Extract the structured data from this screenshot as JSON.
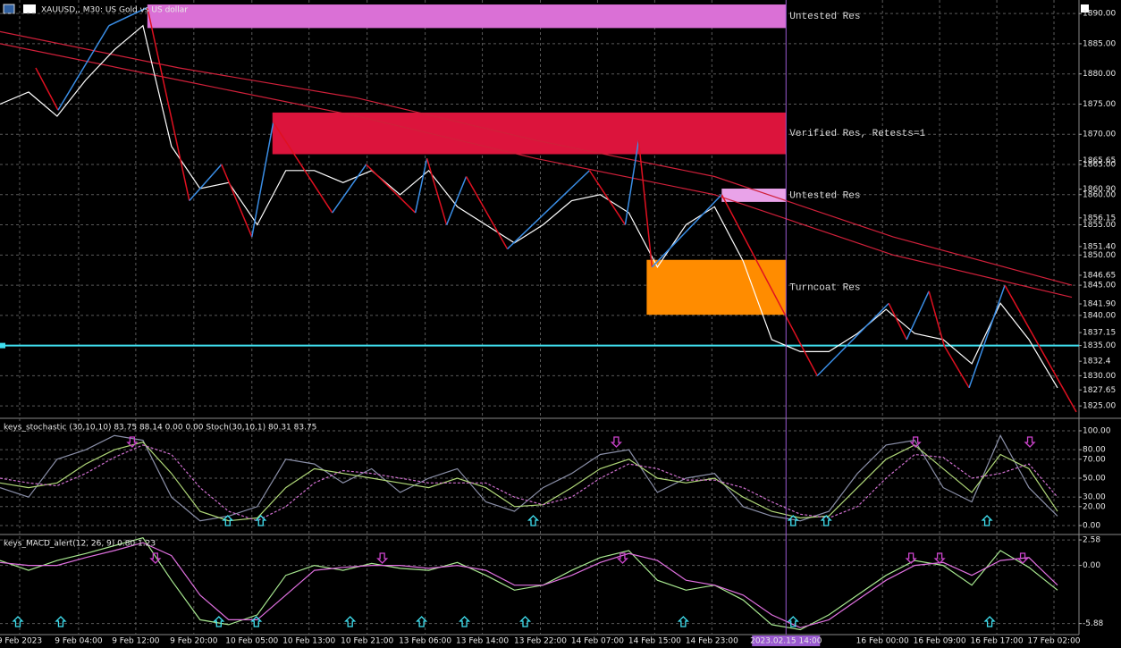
{
  "chart_data": [
    {
      "type": "line",
      "title": "XAUUSD,, M30: US Gold vs US dollar",
      "xlim": [
        0,
        302
      ],
      "ylim": [
        1823.1,
        1891.8
      ],
      "yticks": [
        {
          "value": 1825,
          "label": "1825.00"
        },
        {
          "value": 1830,
          "label": "1830.00"
        },
        {
          "value": 1835,
          "label": "1835.00"
        },
        {
          "value": 1840,
          "label": "1840.00"
        },
        {
          "value": 1845,
          "label": "1845.00"
        },
        {
          "value": 1850,
          "label": "1850.00"
        },
        {
          "value": 1855,
          "label": "1855.00"
        },
        {
          "value": 1860,
          "label": "1860.00"
        },
        {
          "value": 1865,
          "label": "1865.00"
        },
        {
          "value": 1870,
          "label": "1870.00"
        },
        {
          "value": 1875,
          "label": "1875.00"
        },
        {
          "value": 1880,
          "label": "1880.00"
        },
        {
          "value": 1885,
          "label": "1885.00"
        },
        {
          "value": 1890,
          "label": "1890.00"
        }
      ],
      "yticks_minor": [
        1827.65,
        1832.4,
        {
          "value": 1837.15,
          "label": "1837.15"
        },
        {
          "value": 1841.9,
          "label": "1841.90"
        },
        1846.65,
        {
          "value": 1851.4,
          "label": "1851.40"
        },
        1856.15,
        {
          "value": 1860.9,
          "label": "1860.90"
        },
        1865.65
      ],
      "grid": true,
      "zones": [
        {
          "label": "Untested Res",
          "color": "#da70d6",
          "x": [
            41.25,
            220
          ],
          "y": [
            1887.6,
            1891.5
          ]
        },
        {
          "label": "Verified Res, Retests=1",
          "color": "#dc143c",
          "x": [
            76.25,
            220
          ],
          "y": [
            1866.7,
            1873.6
          ]
        },
        {
          "label": "Untested Res",
          "color": "#e9a3e9",
          "x": [
            202,
            220
          ],
          "y": [
            1858.8,
            1861.0
          ]
        },
        {
          "label": "Turncoat Res",
          "color": "#ff8c00",
          "x": [
            181,
            220
          ],
          "y": [
            1840.1,
            1849.2
          ]
        }
      ],
      "hline": {
        "value": 1835,
        "color": "#40e0f0"
      },
      "series": [
        {
          "color": "#d0203a",
          "x": [
            0,
            50,
            100,
            150,
            200,
            250,
            300
          ],
          "values": [
            1887,
            1881,
            1876,
            1869,
            1863,
            1853,
            1845
          ]
        },
        {
          "color": "#d0203a",
          "x": [
            0,
            50,
            100,
            150,
            200,
            250,
            300
          ],
          "values": [
            1885,
            1879,
            1873,
            1866,
            1860,
            1850,
            1843
          ]
        },
        {
          "color": "#ffffff",
          "x": [
            0,
            8,
            16,
            24,
            32,
            40,
            48,
            56,
            64,
            72,
            80,
            88,
            96,
            104,
            112,
            120,
            128,
            136,
            144,
            152,
            160,
            168,
            176,
            184,
            192,
            200,
            208,
            216,
            224,
            232,
            240,
            248,
            256,
            264,
            272,
            280,
            288,
            296
          ],
          "values": [
            1875,
            1877,
            1873,
            1879,
            1884,
            1888,
            1868,
            1861,
            1862,
            1855,
            1864,
            1864,
            1862,
            1864,
            1860,
            1864,
            1858,
            1855,
            1852,
            1855,
            1859,
            1860,
            1857,
            1848,
            1855,
            1858,
            1849,
            1836,
            1834,
            1834,
            1837,
            1841,
            1837,
            1836,
            1832,
            1842,
            1836,
            1828
          ]
        },
        {
          "style": "zigzag",
          "up_color": "#3a8ee6",
          "down_color": "#e01020",
          "x": [
            10,
            16.25,
            30.5,
            41.25,
            53,
            62,
            70.5,
            76.5,
            93,
            102.5,
            116.25,
            119.5,
            125,
            130.5,
            142,
            165,
            175,
            178.75,
            182.5,
            202,
            228.75,
            248.75,
            253.75,
            260,
            264.25,
            271.25,
            281.25,
            301.25
          ],
          "values": [
            1881,
            1874,
            1888,
            1891,
            1859,
            1865,
            1853,
            1872,
            1857,
            1865,
            1857,
            1866,
            1855,
            1863,
            1851,
            1864,
            1855,
            1869,
            1848,
            1860,
            1830,
            1842,
            1836,
            1844,
            1835,
            1828,
            1845,
            1824
          ]
        }
      ]
    },
    {
      "type": "line",
      "title": "keys_stochastic (30,10,10) 83.75 88.14 0.00 0.00 Stoch(30,10,1) 80.31 83.75",
      "xlim": [
        0,
        302
      ],
      "ylim": [
        -8.5,
        111.3
      ],
      "yticks": [
        {
          "value": 0,
          "label": "0.00"
        },
        {
          "value": 20,
          "label": "20.00"
        },
        {
          "value": 30,
          "label": "30.00"
        },
        {
          "value": 50,
          "label": "50.00"
        },
        {
          "value": 70,
          "label": "70.00"
        },
        {
          "value": 80,
          "label": "80.00"
        },
        {
          "value": 100,
          "label": "100.00"
        }
      ],
      "x": [
        0,
        8,
        16,
        24,
        32,
        40,
        48,
        56,
        64,
        72,
        80,
        88,
        96,
        104,
        112,
        120,
        128,
        136,
        144,
        152,
        160,
        168,
        176,
        184,
        192,
        200,
        208,
        216,
        224,
        232,
        240,
        248,
        256,
        264,
        272,
        280,
        288,
        296
      ],
      "series": [
        {
          "color": "#8a8fa8",
          "values": [
            40,
            30,
            70,
            80,
            95,
            90,
            30,
            5,
            10,
            20,
            70,
            65,
            45,
            60,
            35,
            50,
            60,
            25,
            15,
            40,
            55,
            75,
            80,
            35,
            50,
            55,
            20,
            10,
            5,
            15,
            55,
            85,
            90,
            40,
            25,
            95,
            40,
            10
          ]
        },
        {
          "color": "#b0d878",
          "values": [
            45,
            40,
            45,
            65,
            80,
            88,
            55,
            15,
            5,
            8,
            40,
            60,
            55,
            50,
            45,
            40,
            50,
            40,
            20,
            22,
            40,
            60,
            70,
            50,
            45,
            50,
            30,
            15,
            8,
            10,
            40,
            70,
            85,
            60,
            35,
            75,
            60,
            15
          ]
        },
        {
          "color": "#d070d0",
          "dash": true,
          "values": [
            50,
            45,
            42,
            55,
            72,
            85,
            75,
            40,
            15,
            5,
            20,
            45,
            58,
            55,
            50,
            45,
            45,
            45,
            30,
            22,
            30,
            50,
            65,
            60,
            48,
            48,
            40,
            25,
            12,
            8,
            20,
            50,
            75,
            72,
            50,
            55,
            65,
            30
          ]
        }
      ],
      "up_arrows": {
        "color": "#40e0f0",
        "x": [
          63.75,
          73,
          149.25,
          222,
          231.25,
          276.25
        ]
      },
      "down_arrows": {
        "color": "#cc44cc",
        "x": [
          37,
          172.5,
          256.25,
          288.25
        ]
      }
    },
    {
      "type": "line",
      "title": "keys_MACD_alert(12, 26, 9) 0.80 1.23",
      "xlim": [
        0,
        302
      ],
      "ylim": [
        -7.0,
        2.95
      ],
      "yticks": [
        2.58,
        {
          "value": 0,
          "label": "0.00"
        },
        -5.88
      ],
      "x": [
        0,
        8,
        16,
        24,
        32,
        40,
        48,
        56,
        64,
        72,
        80,
        88,
        96,
        104,
        112,
        120,
        128,
        136,
        144,
        152,
        160,
        168,
        176,
        184,
        192,
        200,
        208,
        216,
        224,
        232,
        240,
        248,
        256,
        264,
        272,
        280,
        288,
        296
      ],
      "series": [
        {
          "color": "#a8e890",
          "values": [
            0.5,
            -0.5,
            0.5,
            1.2,
            2.0,
            2.8,
            -1.5,
            -5.5,
            -6.0,
            -5.0,
            -1.0,
            0.0,
            -0.5,
            0.2,
            -0.3,
            -0.5,
            0.3,
            -1.0,
            -2.5,
            -2.0,
            -0.5,
            0.8,
            1.5,
            -1.5,
            -2.5,
            -2.0,
            -3.5,
            -6.0,
            -6.5,
            -5.0,
            -3.0,
            -1.0,
            0.5,
            0.0,
            -2.0,
            1.5,
            -0.2,
            -2.5
          ]
        },
        {
          "color": "#e070e0",
          "values": [
            0.3,
            0.0,
            0.0,
            0.8,
            1.5,
            2.3,
            1.0,
            -3.0,
            -5.5,
            -5.5,
            -3.0,
            -0.5,
            -0.2,
            0.0,
            0.0,
            -0.3,
            0.0,
            -0.5,
            -2.0,
            -2.0,
            -1.0,
            0.3,
            1.2,
            0.5,
            -1.5,
            -2.0,
            -3.0,
            -5.0,
            -6.3,
            -5.5,
            -3.5,
            -1.5,
            0.0,
            0.3,
            -1.0,
            0.5,
            0.8,
            -2.0
          ]
        }
      ],
      "up_arrows": {
        "color": "#40e0f0",
        "x": [
          5,
          17,
          61.25,
          71.75,
          98,
          118,
          130,
          147,
          191.25,
          222,
          277
        ]
      },
      "down_arrows": {
        "color": "#cc44cc",
        "x": [
          43.5,
          107,
          174.25,
          255,
          263,
          286.25
        ]
      },
      "xticks": [
        {
          "value": 5.5,
          "label": "9 Feb 2023"
        },
        {
          "value": 22,
          "label": "9 Feb 04:00"
        },
        {
          "value": 38,
          "label": "9 Feb 12:00"
        },
        {
          "value": 54.25,
          "label": "9 Feb 20:00"
        },
        {
          "value": 70.5,
          "label": "10 Feb 05:00"
        },
        {
          "value": 86.5,
          "label": "10 Feb 13:00"
        },
        {
          "value": 102.75,
          "label": "10 Feb 21:00"
        },
        {
          "value": 119,
          "label": "13 Feb 06:00"
        },
        {
          "value": 135,
          "label": "13 Feb 14:00"
        },
        {
          "value": 151.25,
          "label": "13 Feb 22:00"
        },
        {
          "value": 167.25,
          "label": "14 Feb 07:00"
        },
        {
          "value": 183.25,
          "label": "14 Feb 15:00"
        },
        {
          "value": 199.25,
          "label": "14 Feb 23:00"
        },
        {
          "value": 247,
          "label": "16 Feb 00:00"
        },
        {
          "value": 263,
          "label": "16 Feb 09:00"
        },
        {
          "value": 279,
          "label": "16 Feb 17:00"
        },
        {
          "value": 295,
          "label": "17 Feb 02:00"
        }
      ],
      "cursor": {
        "value": 220,
        "label": "2023.02.15 14:00"
      }
    }
  ]
}
